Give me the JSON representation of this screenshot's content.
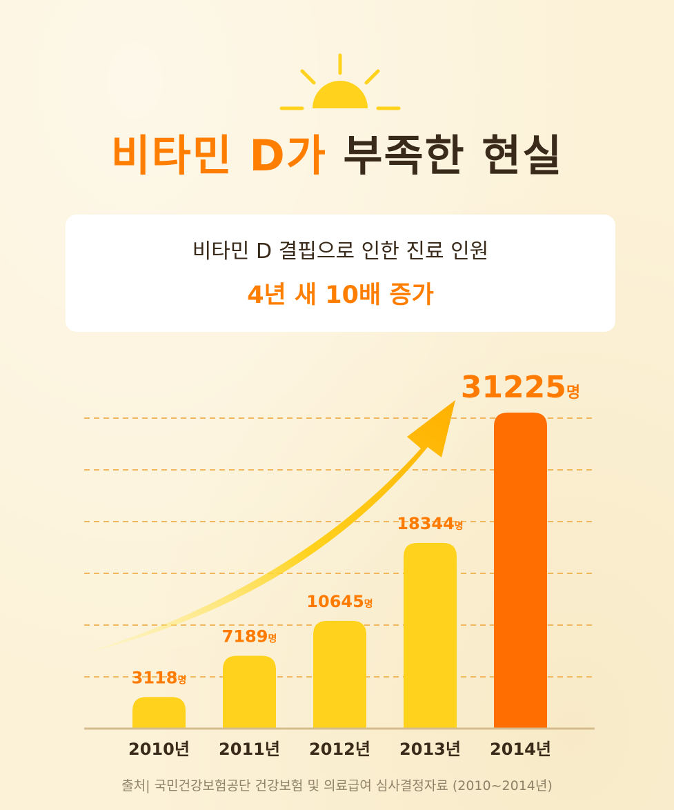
{
  "title": {
    "part1": "비타민 D가",
    "part2": "부족한 현실"
  },
  "card": {
    "line1": "비타민 D 결핍으로 인한 진료 인원",
    "line2": "4년 새 10배 증가"
  },
  "chart_data": {
    "type": "bar",
    "categories": [
      "2010년",
      "2011년",
      "2012년",
      "2013년",
      "2014년"
    ],
    "values": [
      3118,
      7189,
      10645,
      18344,
      31225
    ],
    "value_labels": [
      "3118",
      "7189",
      "10645",
      "18344",
      "31225"
    ],
    "unit": "명",
    "ylim": [
      0,
      31225
    ],
    "grid": true,
    "highlight_index": 4,
    "colors": {
      "bar": "#ffd21e",
      "highlight_bar": "#ff6e00",
      "label": "#ff7a00",
      "arrow_start": "#fff48a",
      "arrow_end": "#ffb000"
    }
  },
  "source": "출처| 국민건강보험공단 건강보험 및 의료급여 심사결정자료 (2010~2014년)"
}
